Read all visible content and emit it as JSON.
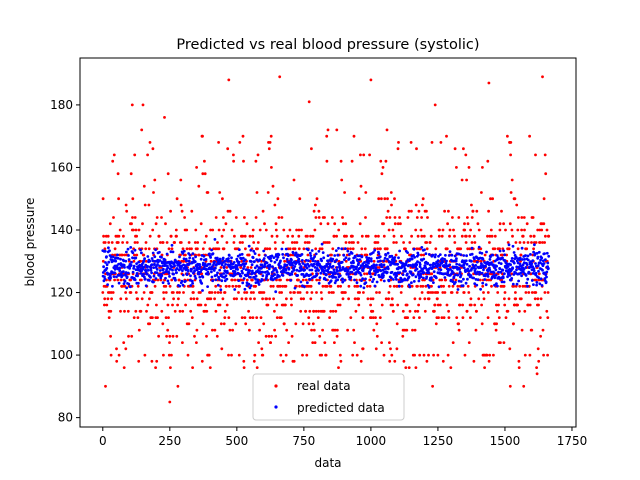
{
  "chart_data": {
    "type": "scatter",
    "title": "Predicted vs real blood pressure (systolic)",
    "xlabel": "data",
    "ylabel": "blood pressure",
    "xlim": [
      -85,
      1765
    ],
    "ylim": [
      77,
      195
    ],
    "xticks": [
      0,
      250,
      500,
      750,
      1000,
      1250,
      1500,
      1750
    ],
    "yticks": [
      80,
      100,
      120,
      140,
      160,
      180
    ],
    "grid": false,
    "legend_position": "lower center",
    "n_points": 1664,
    "series": [
      {
        "name": "real data",
        "color": "#ff0000",
        "levels": [
          100,
          104,
          106,
          108,
          110,
          112,
          114,
          116,
          118,
          120,
          122,
          124,
          126,
          128,
          130,
          132,
          134,
          136,
          138,
          140,
          142,
          144,
          146,
          148,
          150
        ],
        "outliers": [
          [
            10,
            90
          ],
          [
            250,
            85
          ],
          [
            280,
            90
          ],
          [
            470,
            188
          ],
          [
            660,
            189
          ],
          [
            1000,
            188
          ],
          [
            1240,
            180
          ],
          [
            1230,
            90
          ],
          [
            1440,
            187
          ],
          [
            1640,
            189
          ],
          [
            110,
            180
          ],
          [
            150,
            180
          ],
          [
            230,
            176
          ],
          [
            770,
            181
          ],
          [
            840,
            172
          ],
          [
            1060,
            172
          ],
          [
            1150,
            168
          ],
          [
            1620,
            94
          ],
          [
            1520,
            90
          ],
          [
            1570,
            90
          ]
        ]
      },
      {
        "name": "predicted data",
        "color": "#0000ff",
        "center": 128,
        "spread": 5.5,
        "range": [
          116,
          137
        ]
      }
    ]
  }
}
